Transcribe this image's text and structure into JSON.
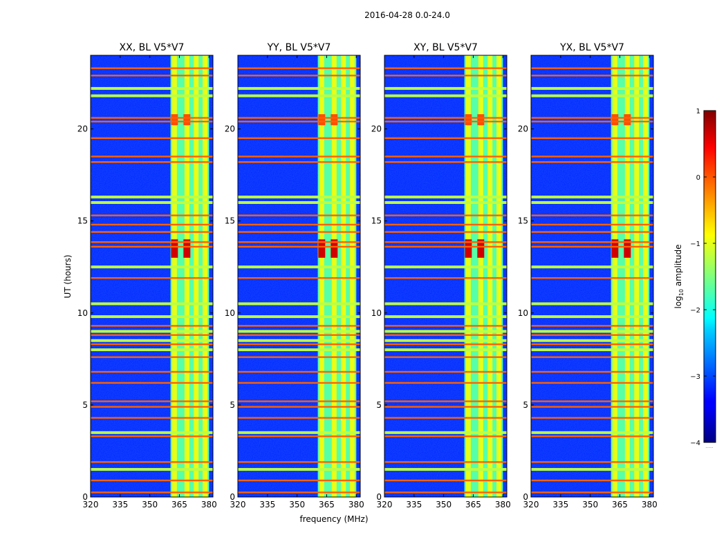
{
  "chart_data": {
    "type": "heatmap",
    "suptitle": "2016-04-28 0.0-24.0",
    "xlabel": "frequency (MHz)",
    "ylabel": "UT (hours)",
    "xlim": [
      320,
      382
    ],
    "ylim": [
      0,
      24
    ],
    "xticks": [
      320,
      335,
      350,
      365,
      380
    ],
    "yticks": [
      0,
      5,
      10,
      15,
      20
    ],
    "panels": [
      {
        "title": "XX, BL V5*V7"
      },
      {
        "title": "YY, BL V5*V7"
      },
      {
        "title": "XY, BL V5*V7"
      },
      {
        "title": "YX, BL V5*V7"
      }
    ],
    "colorbar": {
      "label_prefix": "log",
      "label_sub": "10",
      "label_suffix": " amplitude",
      "range": [
        -4,
        1
      ],
      "ticks": [
        1,
        0,
        -1,
        -2,
        -3,
        -4
      ],
      "tick_labels": [
        "1",
        "0",
        "−1",
        "−2",
        "−3",
        "−4"
      ],
      "colormap": "jet",
      "footer": "......"
    },
    "background_level": -3.2,
    "rfi_band_mhz": [
      360.5,
      380
    ],
    "rfi_channels_mhz": [
      362.5,
      368.8,
      373.5,
      378
    ],
    "high_times_hours": [
      0.25,
      0.9,
      1.9,
      3.3,
      4.3,
      4.9,
      5.2,
      6.2,
      6.8,
      7.6,
      8.3,
      8.8,
      9.3,
      11.9,
      13.6,
      13.85,
      14.4,
      14.8,
      15.3,
      18.2,
      18.5,
      19.5,
      20.4,
      20.6,
      22.9,
      23.3
    ],
    "mid_times_hours": [
      1.5,
      3.5,
      8.0,
      8.5,
      9.0,
      9.8,
      10.5,
      12.5,
      16.0,
      16.3,
      21.8,
      22.2
    ]
  }
}
